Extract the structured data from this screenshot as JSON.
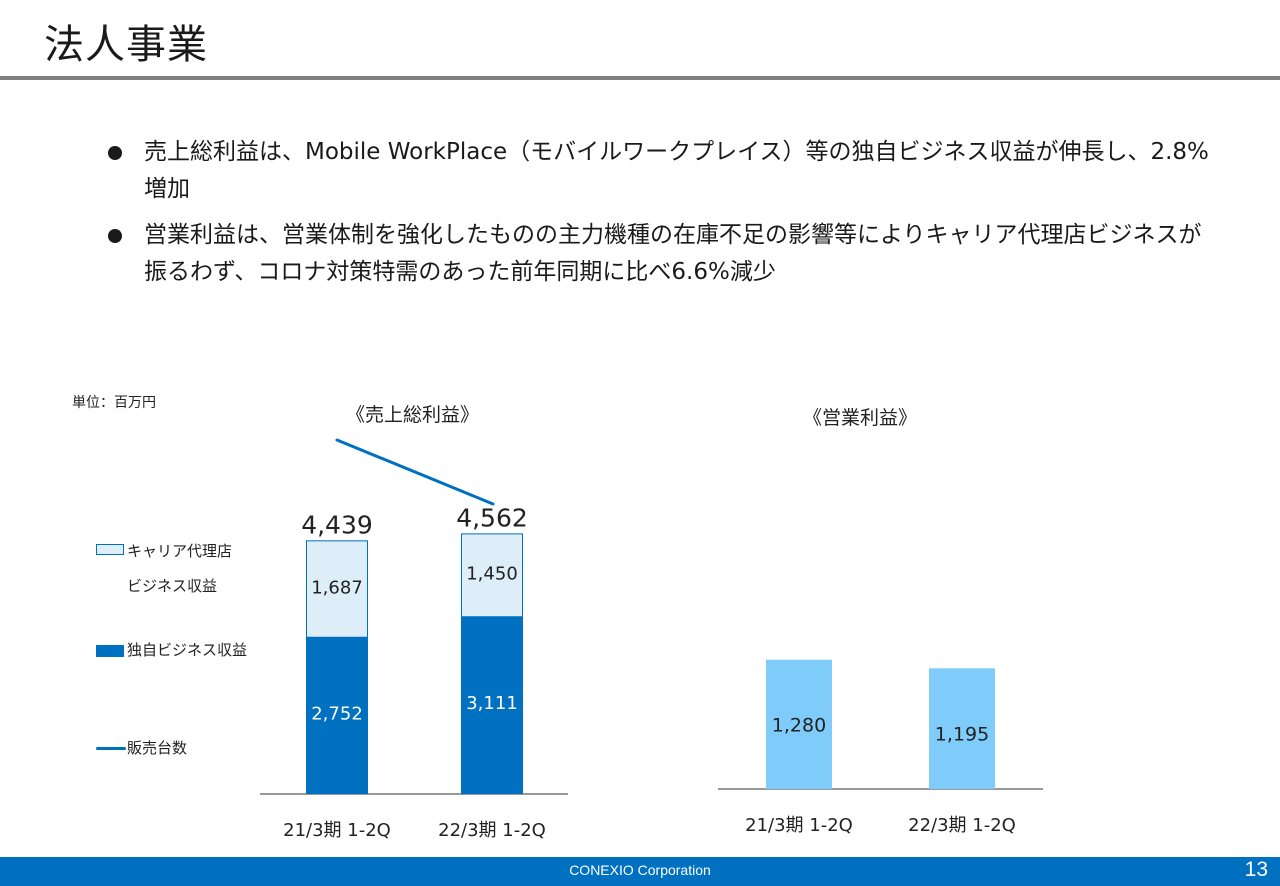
{
  "header": {
    "title": "法人事業"
  },
  "bullets": [
    "売上総利益は、Mobile WorkPlace（モバイルワークプレイス）等の独自ビジネス収益が伸長し、2.8%増加",
    "営業利益は、営業体制を強化したものの主力機種の在庫不足の影響等によりキャリア代理店ビジネスが振るわず、コロナ対策特需のあった前年同期に比べ6.6%減少"
  ],
  "unit_label": "単位：百万円",
  "legend": {
    "carrier_line1": "キャリア代理店",
    "carrier_line2": "ビジネス収益",
    "own": "独自ビジネス収益",
    "units": "販売台数"
  },
  "colors": {
    "own": "#0070c0",
    "carrier": "#ddeef8",
    "carrier_border": "#0070c0",
    "op": "#7fccfa",
    "units_line": "#0070c0",
    "footer": "#0070c0"
  },
  "footer": {
    "company": "CONEXIO Corporation",
    "page": "13"
  },
  "chart_data": [
    {
      "type": "bar",
      "stacked": true,
      "title": "《売上総利益》",
      "categories": [
        "21/3期 1-2Q",
        "22/3期 1-2Q"
      ],
      "series": [
        {
          "name": "独自ビジネス収益",
          "values": [
            2752,
            3111
          ],
          "labels": [
            "2,752",
            "3,111"
          ]
        },
        {
          "name": "キャリア代理店ビジネス収益",
          "values": [
            1687,
            1450
          ],
          "labels": [
            "1,687",
            "1,450"
          ]
        }
      ],
      "totals": [
        4439,
        4562
      ],
      "total_labels": [
        "4,439",
        "4,562"
      ],
      "ylim": [
        0,
        4900
      ]
    },
    {
      "type": "bar",
      "title": "《営業利益》",
      "categories": [
        "21/3期 1-2Q",
        "22/3期 1-2Q"
      ],
      "values": [
        1280,
        1195
      ],
      "labels": [
        "1,280",
        "1,195"
      ],
      "ylim": [
        0,
        1980
      ]
    }
  ]
}
